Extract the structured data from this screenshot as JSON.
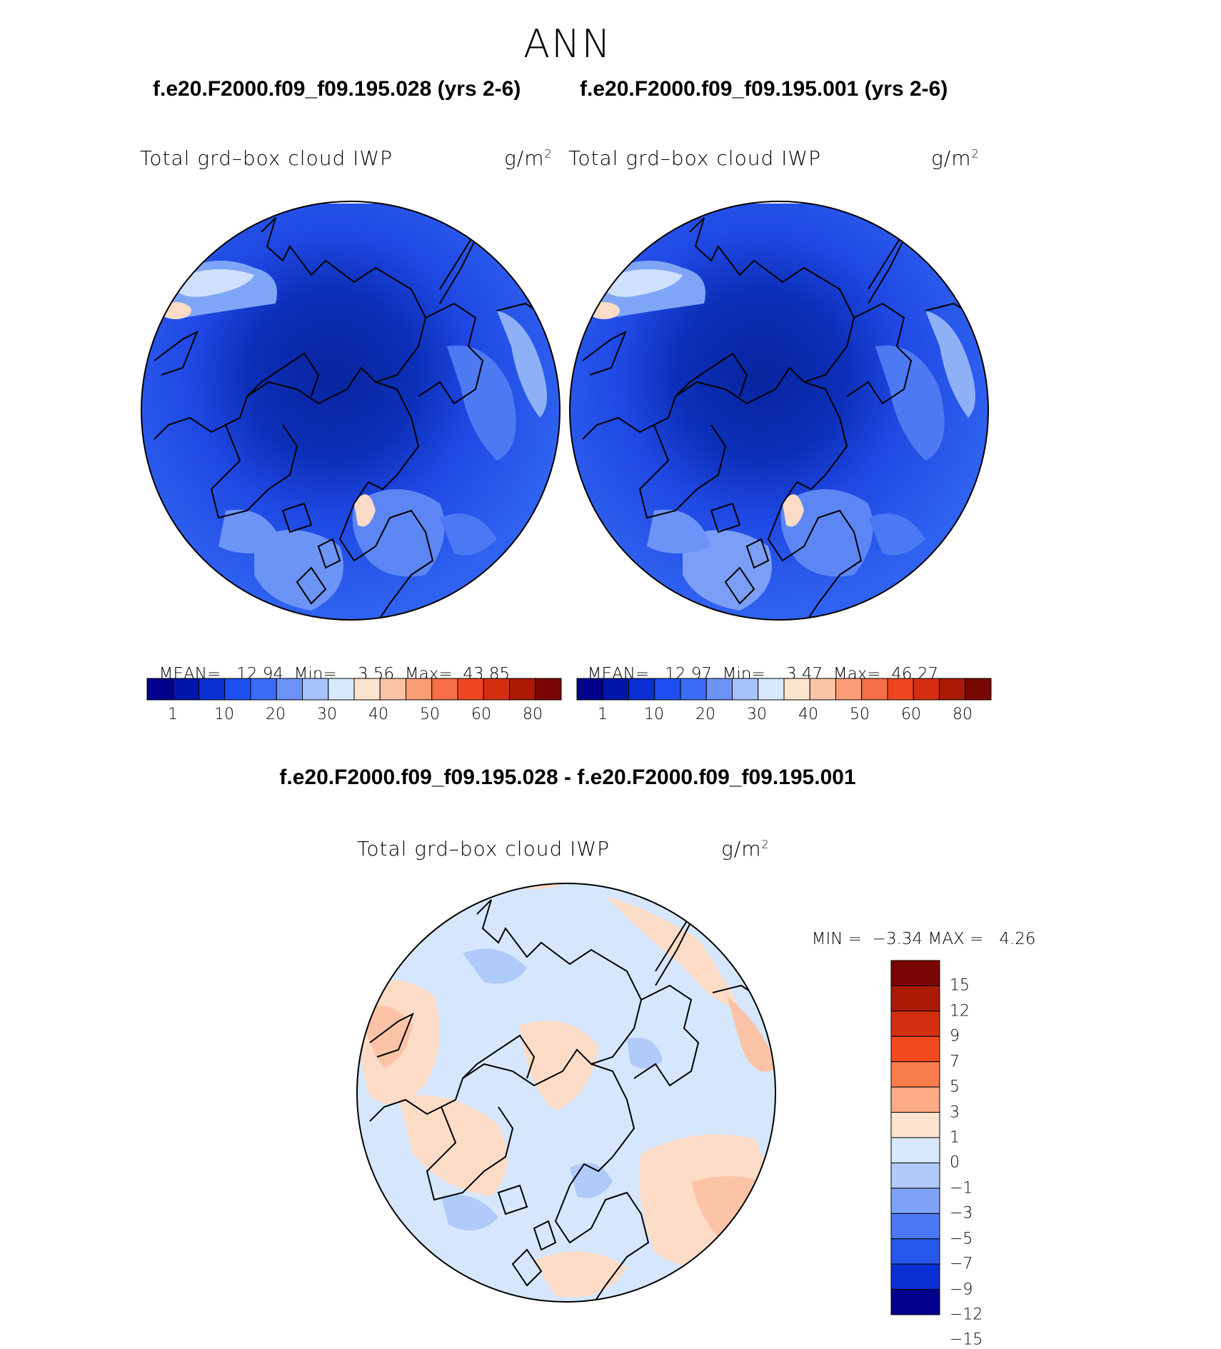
{
  "page_title": "ANN",
  "case_titles": {
    "left": "f.e20.F2000.f09_f09.195.028 (yrs 2-6)",
    "right": "f.e20.F2000.f09_f09.195.001 (yrs 2-6)"
  },
  "diff_title": "f.e20.F2000.f09_f09.195.028 - f.e20.F2000.f09_f09.195.001",
  "panels": [
    {
      "variable": "Total grd–box cloud IWP",
      "units_base": "g/m",
      "units_exp": "2",
      "mean_label": "MEAN=",
      "mean": "12.94",
      "min_label": "Min=",
      "min": "3.56",
      "max_label": "Max=",
      "max": "43.85"
    },
    {
      "variable": "Total grd–box cloud IWP",
      "units_base": "g/m",
      "units_exp": "2",
      "mean_label": "MEAN=",
      "mean": "12.97",
      "min_label": "Min=",
      "min": "3.47",
      "max_label": "Max=",
      "max": "46.27"
    }
  ],
  "diff_panel": {
    "variable": "Total grd–box cloud IWP",
    "units_base": "g/m",
    "units_exp": "2",
    "min_label": "MIN =",
    "min": "−3.34",
    "max_label": "MAX =",
    "max": "4.26"
  },
  "colorbar_abs": {
    "colors": [
      "#00008c",
      "#0016a8",
      "#0a2fd2",
      "#1e4ff0",
      "#3a6cf5",
      "#6b92f6",
      "#a6c2fb",
      "#d8e9fd",
      "#fde4cf",
      "#fcc3a6",
      "#fa9d76",
      "#f66e45",
      "#ee471f",
      "#d42e10",
      "#aa1a06",
      "#7a0603"
    ],
    "tick_labels": [
      "1",
      "10",
      "20",
      "30",
      "40",
      "50",
      "60",
      "80"
    ]
  },
  "colorbar_diff": {
    "colors": [
      "#7a0603",
      "#aa1a06",
      "#d42e10",
      "#f24a1d",
      "#f97c4c",
      "#fcab85",
      "#fde4cf",
      "#d8e9fd",
      "#b0caf9",
      "#7ea3f7",
      "#4b78f3",
      "#2658ed",
      "#0a2fd2",
      "#00008c"
    ],
    "tick_labels": [
      "15",
      "12",
      "9",
      "7",
      "5",
      "3",
      "1",
      "0",
      "−1",
      "−3",
      "−5",
      "−7",
      "−9",
      "−12",
      "−15"
    ]
  },
  "colors": {
    "abs_ocean_bg": "#2d5ff0",
    "abs_core": "#0a28b4",
    "diff_bg": "#d6e7fd",
    "diff_warm": "#fcdcc7"
  }
}
